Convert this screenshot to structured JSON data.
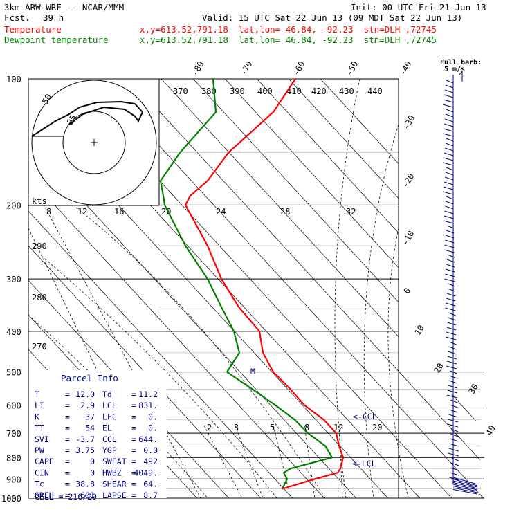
{
  "header": {
    "model": "3km ARW-WRF -- NCAR/MMM",
    "init": "Init: 00 UTC Fri 21 Jun 13",
    "fcst_label": "Fcst.",
    "fcst_value": "39 h",
    "valid": "Valid: 15 UTC Sat 22 Jun 13 (09 MDT Sat 22 Jun 13)",
    "temp_label": "Temperature",
    "dew_label": "Dewpoint temperature",
    "temp_info": "x,y=613.52,791.18  lat,lon= 46.84, -92.23  stn=DLH ,72745",
    "dew_info": "x,y=613.52,791.18  lat,lon= 46.84, -92.23  stn=DLH ,72745",
    "barb_legend": "Full barb:",
    "barb_legend_unit": "5 m/s"
  },
  "colors": {
    "temperature": "#ff0000",
    "dewpoint": "#008000",
    "grid": "#000000",
    "info": "#000080"
  },
  "hodograph": {
    "units": "kts",
    "ring_labels": [
      "25",
      "50"
    ],
    "speed_ticks": [
      "8",
      "12",
      "16",
      "20",
      "24",
      "28",
      "32"
    ]
  },
  "parcel_info": {
    "title": "Parcel Info",
    "rows": [
      [
        "T",
        "12.0",
        "Td",
        "11.2"
      ],
      [
        "LI",
        "2.9",
        "LCL",
        "831."
      ],
      [
        "K",
        "37",
        "LFC",
        "0."
      ],
      [
        "TT",
        "54",
        "EL",
        "0."
      ],
      [
        "SVI",
        "-3.7",
        "CCL",
        "644."
      ],
      [
        "PW",
        "3.75",
        "YGP",
        "0.0"
      ],
      [
        "CAPE",
        "0",
        "SWEAT",
        "492"
      ],
      [
        "CIN",
        "0",
        "HWBZ",
        "4049."
      ],
      [
        "Tc",
        "38.8",
        "SHEAR",
        "64."
      ],
      [
        "SREH",
        "601",
        "LAPSE",
        "8.7"
      ]
    ],
    "cell": "CELL = 216/29"
  },
  "markers": {
    "ccl": "<-CCL",
    "lcl": "<-LCL",
    "m": "M"
  },
  "chart_data": {
    "type": "line",
    "pressure_ticks": [
      "100",
      "200",
      "300",
      "400",
      "500",
      "600",
      "700",
      "800",
      "900",
      "1000"
    ],
    "isotherms": [
      "-80",
      "-70",
      "-60",
      "-50",
      "-40",
      "-30",
      "-20",
      "-10",
      "0",
      "10",
      "20",
      "30",
      "40"
    ],
    "dry_adiabats": [
      "370",
      "380",
      "390",
      "400",
      "410",
      "420",
      "430",
      "440",
      "290",
      "280",
      "270"
    ],
    "mixing_ratio": [
      "2",
      "3",
      "5",
      "8",
      "12",
      "20"
    ],
    "series": [
      {
        "name": "Temperature",
        "pressure": [
          100,
          120,
          150,
          175,
          190,
          200,
          250,
          300,
          350,
          400,
          450,
          500,
          550,
          600,
          650,
          700,
          750,
          800,
          850,
          870,
          900,
          950
        ],
        "values": [
          -62,
          -60,
          -60,
          -58,
          -57,
          -56,
          -51,
          -44,
          -34,
          -23,
          -16,
          -11,
          -4,
          2,
          6,
          11,
          13,
          17,
          18,
          18,
          14,
          12
        ]
      },
      {
        "name": "Dewpoint temperature",
        "pressure": [
          100,
          120,
          150,
          175,
          190,
          200,
          250,
          300,
          350,
          400,
          450,
          500,
          550,
          600,
          650,
          700,
          750,
          800,
          850,
          870,
          900,
          950
        ],
        "values": [
          -75,
          -75,
          -78,
          -80,
          -80,
          -79,
          -70,
          -62,
          -50,
          -38,
          -30,
          -34,
          -24,
          -13,
          -6,
          -1,
          5,
          10,
          5,
          0,
          5,
          10
        ]
      }
    ]
  }
}
